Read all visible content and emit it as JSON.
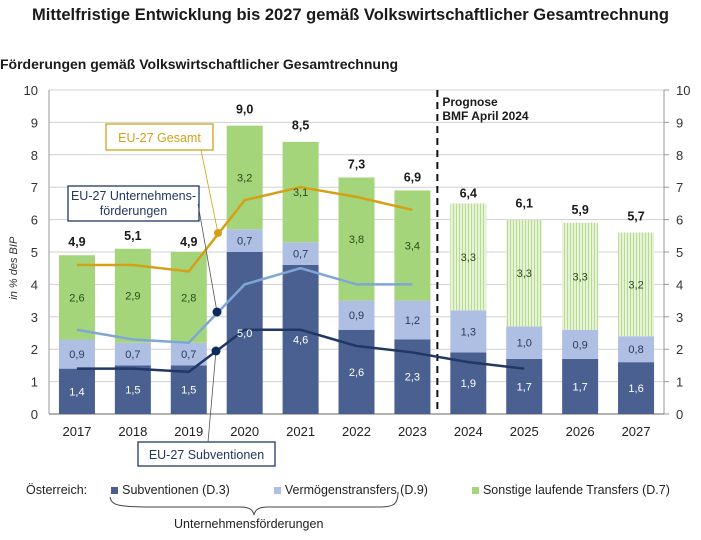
{
  "title": "Mittelfristige Entwicklung bis 2027 gemäß Volkswirtschaftlicher Gesamtrechnung",
  "subtitle": "Förderungen gemäß Volkswirtschaftlicher Gesamtrechnung",
  "colors": {
    "subventionen": "#4a6091",
    "vermoegenstransfers": "#aebfe3",
    "sonstige": "#a5d57a",
    "sonstige_forecast": "#cfe9b4",
    "eu_gesamt": "#d4a017",
    "eu_unternehmen": "#7fa7d6",
    "eu_subventionen": "#203864",
    "grid": "#d0d0d0"
  },
  "chart_data": {
    "type": "bar",
    "stacked": true,
    "title": "Förderungen gemäß Volkswirtschaftlicher Gesamtrechnung",
    "xlabel": "",
    "ylabel": "in % des BIP",
    "ylim": [
      0,
      10
    ],
    "yticks": [
      0,
      1,
      2,
      3,
      4,
      5,
      6,
      7,
      8,
      9,
      10
    ],
    "secondary_yticks": [
      0,
      1,
      2,
      3,
      4,
      5,
      6,
      7,
      8,
      9,
      10
    ],
    "grid": true,
    "categories": [
      "2017",
      "2018",
      "2019",
      "2020",
      "2021",
      "2022",
      "2023",
      "2024",
      "2025",
      "2026",
      "2027"
    ],
    "forecast_start_index": 7,
    "forecast_label_line1": "Prognose",
    "forecast_label_line2": "BMF April 2024",
    "series": [
      {
        "name": "Subventionen (D.3)",
        "values": [
          1.4,
          1.5,
          1.5,
          5.0,
          4.6,
          2.6,
          2.3,
          1.9,
          1.7,
          1.7,
          1.6
        ],
        "labels": [
          "1,4",
          "1,5",
          "1,5",
          "5,0",
          "4,6",
          "2,6",
          "2,3",
          "1,9",
          "1,7",
          "1,7",
          "1,6"
        ]
      },
      {
        "name": "Vermögenstransfers (D.9)",
        "values": [
          0.9,
          0.7,
          0.7,
          0.7,
          0.7,
          0.9,
          1.2,
          1.3,
          1.0,
          0.9,
          0.8
        ],
        "labels": [
          "0,9",
          "0,7",
          "0,7",
          "0,7",
          "0,7",
          "0,9",
          "1,2",
          "1,3",
          "1,0",
          "0,9",
          "0,8"
        ]
      },
      {
        "name": "Sonstige laufende Transfers (D.7)",
        "values": [
          2.6,
          2.9,
          2.8,
          3.2,
          3.1,
          3.8,
          3.4,
          3.3,
          3.3,
          3.3,
          3.2
        ],
        "labels": [
          "2,6",
          "2,9",
          "2,8",
          "3,2",
          "3,1",
          "3,8",
          "3,4",
          "3,3",
          "3,3",
          "3,3",
          "3,2"
        ]
      }
    ],
    "totals": {
      "values": [
        4.9,
        5.1,
        4.9,
        9.0,
        8.5,
        7.3,
        6.9,
        6.4,
        6.1,
        5.9,
        5.7
      ],
      "labels": [
        "4,9",
        "5,1",
        "4,9",
        "9,0",
        "8,5",
        "7,3",
        "6,9",
        "6,4",
        "6,1",
        "5,9",
        "5,7"
      ]
    },
    "lines": [
      {
        "name": "EU-27 Gesamt",
        "values": [
          4.6,
          4.6,
          4.4,
          6.6,
          7.0,
          6.7,
          6.3,
          null,
          null,
          null,
          null
        ]
      },
      {
        "name": "EU-27 Unternehmensförderungen",
        "values": [
          2.6,
          2.3,
          2.2,
          4.0,
          4.5,
          4.0,
          4.0,
          null,
          null,
          null,
          null
        ]
      },
      {
        "name": "EU-27 Subventionen",
        "values": [
          1.4,
          1.4,
          1.3,
          2.6,
          2.6,
          2.1,
          1.9,
          1.6,
          1.4,
          null,
          null
        ]
      }
    ],
    "annotations": [
      {
        "text": "EU-27 Gesamt",
        "line": "EU-27 Gesamt"
      },
      {
        "text_line1": "EU-27 Unternehmens-",
        "text_line2": "förderungen",
        "line": "EU-27 Unternehmensförderungen"
      },
      {
        "text": "EU-27 Subventionen",
        "line": "EU-27 Subventionen"
      }
    ]
  },
  "legend": {
    "prefix": "Österreich:",
    "items": [
      "Subventionen (D.3)",
      "Vermögenstransfers (D.9)",
      "Sonstige laufende Transfers (D.7)"
    ],
    "brace_label": "Unternehmensförderungen"
  }
}
